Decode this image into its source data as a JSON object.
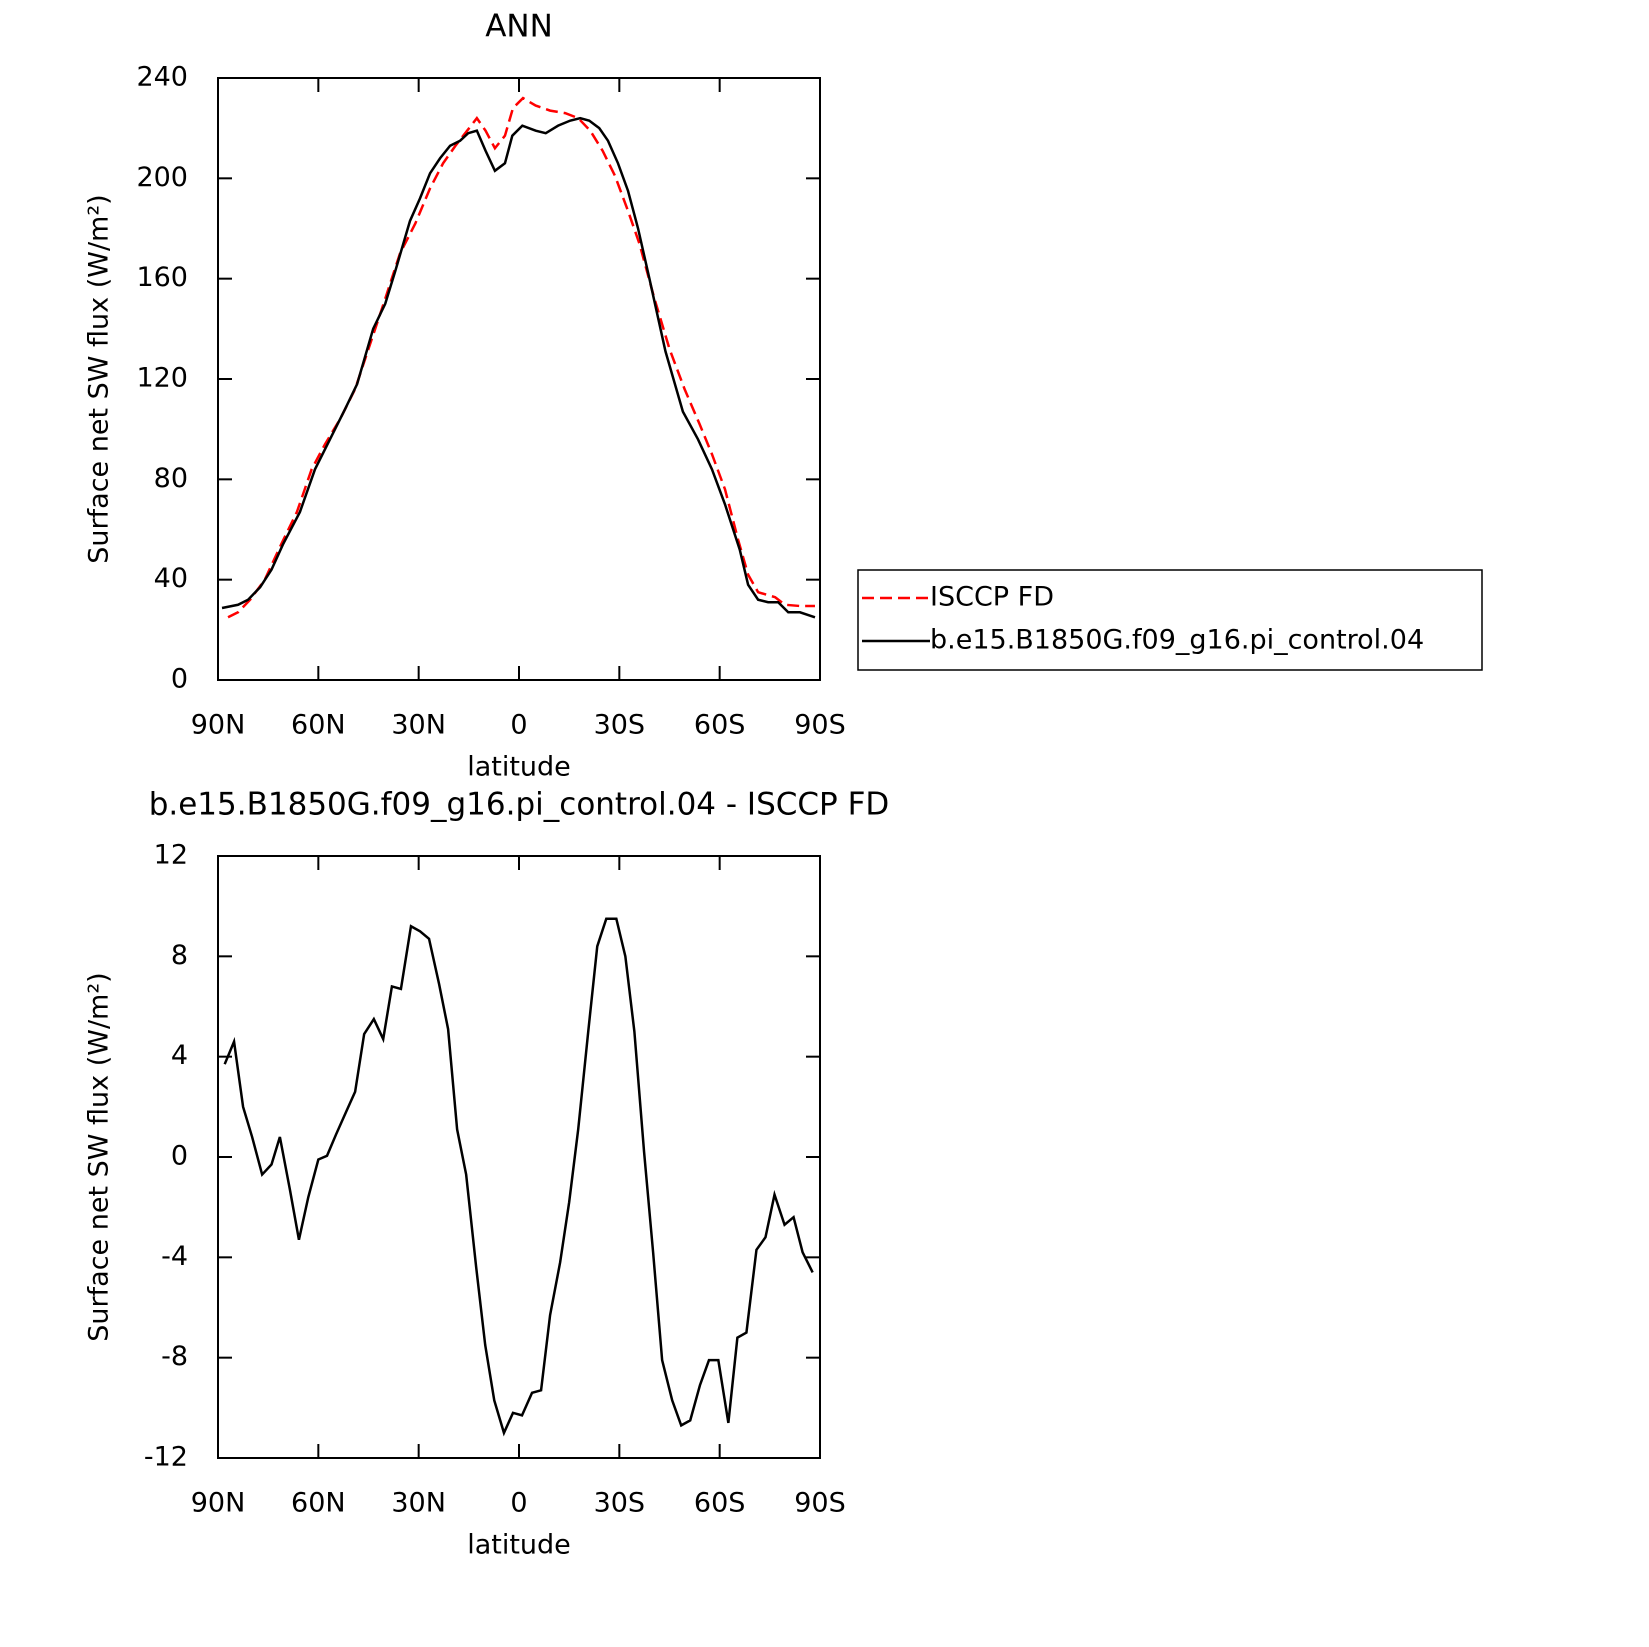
{
  "chart_data": [
    {
      "type": "line",
      "title": "ANN",
      "xlabel": "latitude",
      "ylabel": "Surface net SW flux (W/m²)",
      "xlim": [
        90,
        -90
      ],
      "xticks": [
        {
          "value": 90,
          "label": "90N"
        },
        {
          "value": 60,
          "label": "60N"
        },
        {
          "value": 30,
          "label": "30N"
        },
        0,
        {
          "value": -30,
          "label": "30S"
        },
        {
          "value": -60,
          "label": "60S"
        },
        {
          "value": -90,
          "label": "90S"
        }
      ],
      "ylim": [
        0,
        240
      ],
      "yticks": [
        0,
        40,
        80,
        120,
        160,
        200,
        240
      ],
      "legend": "right",
      "series": [
        {
          "name": "ISCCP FD",
          "color": "#ff0000",
          "dashed": true,
          "x": [
            87,
            84,
            80.4,
            76,
            71.5,
            66.4,
            62,
            58,
            53.5,
            49,
            44.5,
            40,
            35.6,
            31,
            26.6,
            22.7,
            19,
            15.5,
            12.6,
            10,
            7.2,
            4.2,
            1.8,
            -1.2,
            -5,
            -9.3,
            -13.8,
            -17.7,
            -21.3,
            -25,
            -28.7,
            -32.6,
            -36,
            -40.5,
            -45,
            -49.5,
            -54,
            -57.7,
            -61.6,
            -65.5,
            -68.5,
            -71.5,
            -76.6,
            -79.5,
            -84,
            -88.5
          ],
          "values": [
            25,
            27,
            32,
            40,
            53,
            67,
            84,
            94,
            104,
            116,
            134,
            152,
            170,
            182,
            196,
            206,
            213,
            219,
            224,
            219,
            212,
            217,
            228,
            232,
            229,
            227,
            226,
            224,
            219,
            211,
            201,
            187,
            174,
            152,
            132,
            116,
            102,
            90,
            76,
            56,
            42,
            35,
            33,
            30,
            29.5,
            29.5
          ]
        },
        {
          "name": "b.e15.B1850G.f09_g16.pi_control.04",
          "color": "#000000",
          "dashed": false,
          "x": [
            88.8,
            84,
            81,
            77.4,
            74,
            70.6,
            65.5,
            61,
            56.5,
            52,
            48.4,
            43.6,
            40,
            37,
            32.6,
            29.6,
            26.6,
            23.6,
            20.6,
            17.6,
            15.2,
            12.6,
            10,
            7.2,
            4.2,
            2,
            -1,
            -5,
            -8,
            -11.7,
            -15.3,
            -18.3,
            -21,
            -24,
            -26.6,
            -29.6,
            -32.6,
            -35.6,
            -39,
            -43.8,
            -49,
            -53.5,
            -57.7,
            -61.6,
            -66,
            -68.5,
            -71.5,
            -74.5,
            -77.5,
            -80.5,
            -84,
            -88.5
          ],
          "values": [
            28.7,
            30,
            32,
            37,
            44,
            54,
            67,
            84,
            96,
            108,
            118,
            140,
            150,
            163,
            183,
            192,
            202,
            208,
            213,
            215,
            218,
            219,
            211,
            203,
            206,
            217,
            221,
            219,
            218,
            221,
            223,
            224,
            223,
            220,
            215,
            206,
            195,
            180,
            160,
            131,
            107,
            96,
            84,
            70,
            52,
            38,
            32,
            31,
            31,
            27,
            27,
            25
          ]
        }
      ]
    },
    {
      "type": "line",
      "title": "b.e15.B1850G.f09_g16.pi_control.04 - ISCCP FD",
      "xlabel": "latitude",
      "ylabel": "Surface net SW flux (W/m²)",
      "xlim": [
        90,
        -90
      ],
      "xticks": [
        {
          "value": 90,
          "label": "90N"
        },
        {
          "value": 60,
          "label": "60N"
        },
        {
          "value": 30,
          "label": "30N"
        },
        0,
        {
          "value": -30,
          "label": "30S"
        },
        {
          "value": -60,
          "label": "60S"
        },
        {
          "value": -90,
          "label": "90S"
        }
      ],
      "ylim": [
        -12,
        12
      ],
      "yticks": [
        -12,
        -8,
        -4,
        0,
        4,
        8,
        12
      ],
      "series": [
        {
          "color": "#000000",
          "dashed": false,
          "x": [
            88,
            85.2,
            82.5,
            79.8,
            76.8,
            74,
            71.5,
            68.5,
            65.8,
            63,
            60,
            57.4,
            54.7,
            51.7,
            49,
            46.3,
            43.4,
            40.6,
            38,
            35.3,
            32.3,
            29.6,
            26.9,
            23.9,
            21.2,
            18.5,
            15.8,
            12.8,
            10.1,
            7.4,
            4.5,
            1.8,
            -0.9,
            -3.9,
            -6.6,
            -9.3,
            -12.3,
            -15,
            -17.7,
            -20.7,
            -23.4,
            -26.1,
            -29.1,
            -31.8,
            -34.5,
            -37.4,
            -40.1,
            -42.8,
            -45.8,
            -48.5,
            -51.2,
            -54.1,
            -56.8,
            -59.6,
            -62.6,
            -65.3,
            -68,
            -71,
            -73.7,
            -76.4,
            -79.4,
            -82.1,
            -84.8,
            -87.8
          ],
          "values": [
            3.7,
            4.6,
            2.0,
            0.8,
            -0.7,
            -0.3,
            0.8,
            -1.3,
            -3.3,
            -1.6,
            -0.1,
            0.05,
            0.9,
            1.8,
            2.6,
            4.9,
            5.5,
            4.7,
            6.8,
            6.7,
            9.2,
            9.0,
            8.7,
            6.9,
            5.1,
            1.1,
            -0.7,
            -4.4,
            -7.5,
            -9.7,
            -11.0,
            -10.2,
            -10.3,
            -9.4,
            -9.3,
            -6.3,
            -4.2,
            -1.8,
            1.1,
            5.0,
            8.4,
            9.5,
            9.5,
            8.0,
            5.0,
            0.2,
            -3.8,
            -8.1,
            -9.7,
            -10.7,
            -10.5,
            -9.1,
            -8.1,
            -8.1,
            -10.6,
            -7.2,
            -7.0,
            -3.7,
            -3.2,
            -1.5,
            -2.7,
            -2.4,
            -3.8,
            -4.6
          ]
        }
      ]
    }
  ]
}
